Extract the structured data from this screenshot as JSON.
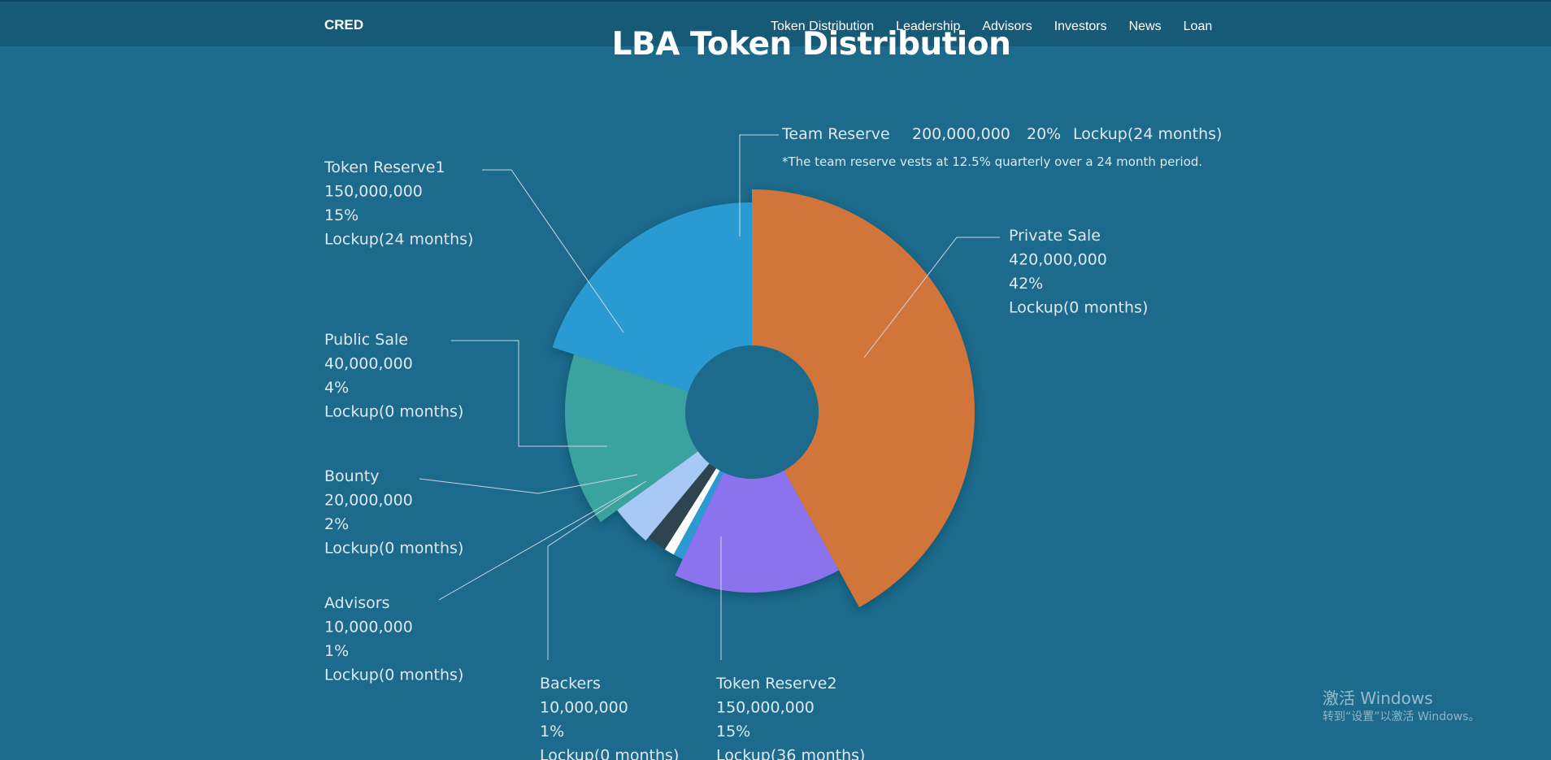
{
  "brand": "CRED",
  "nav": [
    "Token Distribution",
    "Leadership",
    "Advisors",
    "Investors",
    "News",
    "Loan"
  ],
  "chart_data": {
    "type": "pie",
    "title": "LBA Token Distribution",
    "note": "*The team reserve vests at 12.5% quarterly over a 24 month period.",
    "slices": [
      {
        "name": "Private Sale",
        "tokens": "420,000,000",
        "percent_label": "42%",
        "lockup": "Lockup(0 months)",
        "value": 42,
        "color": "#d2743a"
      },
      {
        "name": "Token Reserve2",
        "tokens": "150,000,000",
        "percent_label": "15%",
        "lockup": "Lockup(36 months)",
        "value": 15,
        "color": "#8b73ee"
      },
      {
        "name": "Backers",
        "tokens": "10,000,000",
        "percent_label": "1%",
        "lockup": "Lockup(0 months)",
        "value": 1,
        "color": "#2a9bd2"
      },
      {
        "name": "Advisors",
        "tokens": "10,000,000",
        "percent_label": "1%",
        "lockup": "Lockup(0 months)",
        "value": 1,
        "color": "#ffffff"
      },
      {
        "name": "Bounty",
        "tokens": "20,000,000",
        "percent_label": "2%",
        "lockup": "Lockup(0 months)",
        "value": 2,
        "color": "#2f4450"
      },
      {
        "name": "Public Sale",
        "tokens": "40,000,000",
        "percent_label": "4%",
        "lockup": "Lockup(0 months)",
        "value": 4,
        "color": "#a8c8f5"
      },
      {
        "name": "Token Reserve1",
        "tokens": "150,000,000",
        "percent_label": "15%",
        "lockup": "Lockup(24 months)",
        "value": 15,
        "color": "#3aa39f"
      },
      {
        "name": "Team Reserve",
        "tokens": "200,000,000",
        "percent_label": "20%",
        "lockup": "Lockup(24 months)",
        "value": 20,
        "color": "#2a9bd2"
      }
    ]
  },
  "watermark": {
    "line1": "激活 Windows",
    "line2": "转到“设置”以激活 Windows。"
  }
}
